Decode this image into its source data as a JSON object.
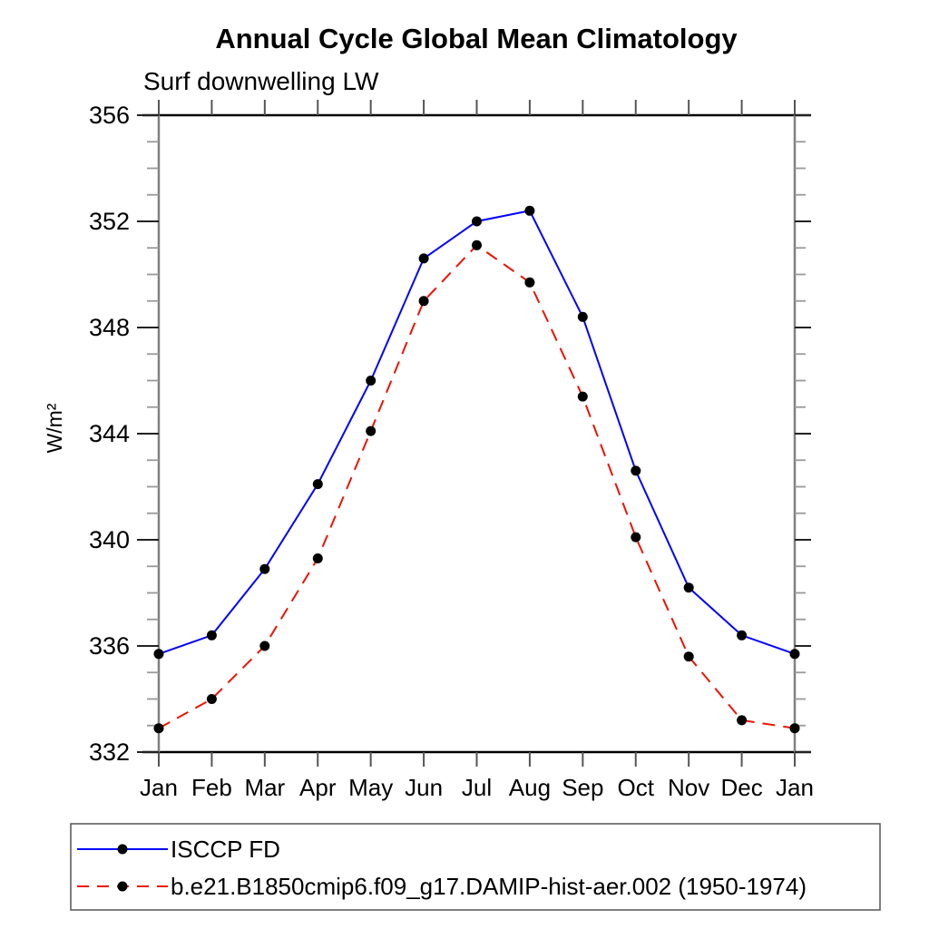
{
  "chart_data": {
    "type": "line",
    "title": "Annual Cycle Global Mean Climatology",
    "subtitle": "Surf downwelling LW",
    "ylabel": "W/m²",
    "x_tick_labels": [
      "Jan",
      "Feb",
      "Mar",
      "Apr",
      "May",
      "Jun",
      "Jul",
      "Aug",
      "Sep",
      "Oct",
      "Nov",
      "Dec",
      "Jan"
    ],
    "ylim": [
      332,
      356
    ],
    "y_major_step": 4,
    "y_minor_step": 1,
    "y_tick_labels": [
      "332",
      "336",
      "340",
      "344",
      "348",
      "352",
      "356"
    ],
    "grid": false,
    "legend_position": "bottom-left",
    "series": [
      {
        "name": "ISCCP FD",
        "color": "#0000ff",
        "style": "solid",
        "marker": "circle",
        "marker_color": "#000000",
        "values": [
          335.7,
          336.4,
          338.9,
          342.1,
          346.0,
          350.6,
          352.0,
          352.4,
          348.4,
          342.6,
          338.2,
          336.4,
          335.7
        ]
      },
      {
        "name": "b.e21.B1850cmip6.f09_g17.DAMIP-hist-aer.002 (1950-1974)",
        "color": "#ee1100",
        "style": "dashed",
        "marker": "circle",
        "marker_color": "#000000",
        "values": [
          332.9,
          334.0,
          336.0,
          339.3,
          344.1,
          349.0,
          351.1,
          349.7,
          345.4,
          340.1,
          335.6,
          333.2,
          332.9
        ]
      }
    ]
  }
}
